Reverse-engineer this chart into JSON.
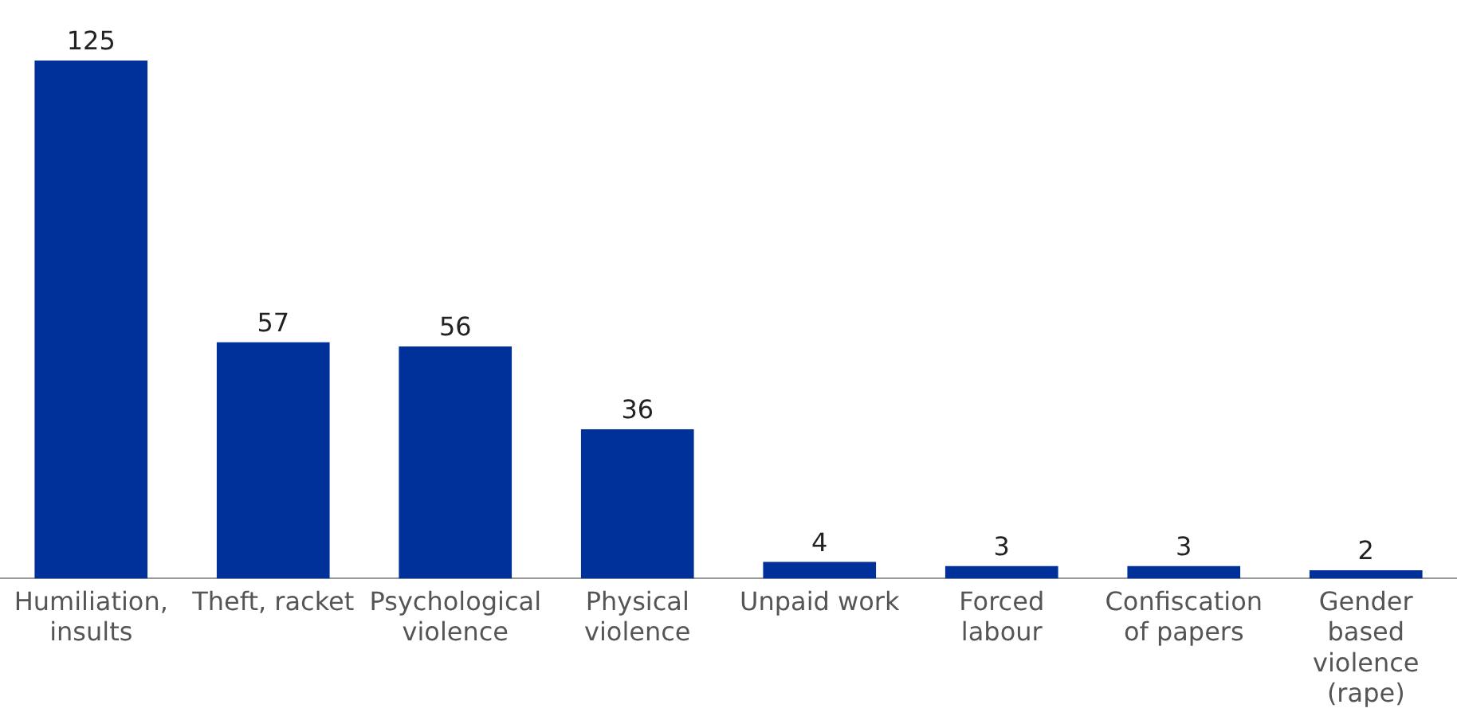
{
  "chart_data": {
    "type": "bar",
    "categories": [
      "Humiliation,\ninsults",
      "Theft, racket",
      "Psychological\nviolence",
      "Physical\nviolence",
      "Unpaid work",
      "Forced\nlabour",
      "Confiscation\nof papers",
      "Gender\nbased\nviolence\n(rape)"
    ],
    "values": [
      125,
      57,
      56,
      36,
      4,
      3,
      3,
      2
    ],
    "color": "#00309a",
    "data_labels": true,
    "grid": false,
    "legend": false
  }
}
